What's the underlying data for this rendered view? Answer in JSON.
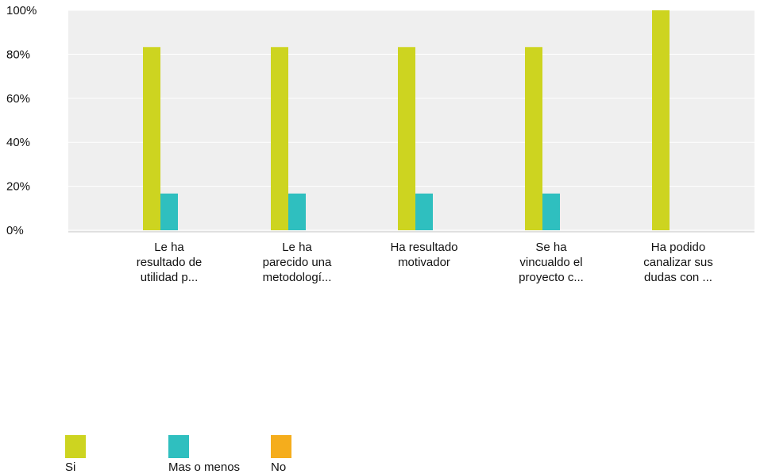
{
  "chart_data": {
    "type": "bar",
    "categories": [
      [
        "Le ha",
        "resultado de",
        "utilidad p..."
      ],
      [
        "Le ha",
        "parecido una",
        "metodologí..."
      ],
      [
        "Ha resultado",
        "motivador"
      ],
      [
        "Se ha",
        "vincualdo el",
        "proyecto c..."
      ],
      [
        "Ha podido",
        "canalizar sus",
        "dudas con ..."
      ]
    ],
    "series": [
      {
        "name": "Si",
        "color": "#cdd420",
        "values": [
          83.3,
          83.3,
          83.3,
          83.3,
          100
        ]
      },
      {
        "name": "Mas o menos",
        "color": "#2fbfbf",
        "values": [
          16.7,
          16.7,
          16.7,
          16.7,
          0
        ]
      },
      {
        "name": "No",
        "color": "#f5ad1c",
        "values": [
          0,
          0,
          0,
          0,
          0
        ]
      }
    ],
    "yticks": [
      "0%",
      "20%",
      "40%",
      "60%",
      "80%",
      "100%"
    ],
    "ylim": [
      0,
      100
    ],
    "grid": true,
    "legend": "bottom-left"
  }
}
